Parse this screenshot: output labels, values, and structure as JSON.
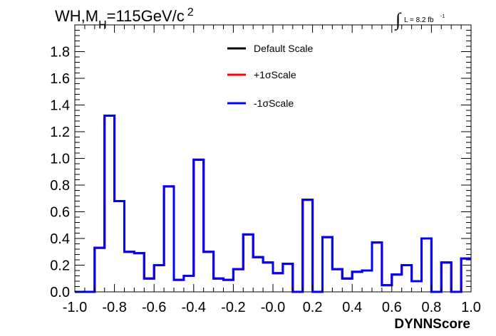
{
  "chart_data": {
    "type": "step",
    "title": "WH,M",
    "title_sub": "H",
    "title_rest": "=115GeV/c",
    "title_sup": "2",
    "lumi_label": "L = 8.2 fb",
    "lumi_sup": "-1",
    "xlabel": "DYNNScore",
    "ylabel": "",
    "xlim": [
      -1.0,
      1.0
    ],
    "ylim": [
      0.0,
      2.0
    ],
    "xticks": [
      "-1.0",
      "-0.8",
      "-0.6",
      "-0.4",
      "-0.2",
      "-0.0",
      "0.2",
      "0.4",
      "0.6",
      "0.8",
      "1.0"
    ],
    "yticks": [
      "0.0",
      "0.2",
      "0.4",
      "0.6",
      "0.8",
      "1.0",
      "1.2",
      "1.4",
      "1.6",
      "1.8"
    ],
    "bin_edges": [
      -1.0,
      -0.9,
      -0.85,
      -0.8,
      -0.75,
      -0.7,
      -0.65,
      -0.6,
      -0.55,
      -0.5,
      -0.45,
      -0.4,
      -0.35,
      -0.3,
      -0.25,
      -0.2,
      -0.15,
      -0.1,
      -0.05,
      0.0,
      0.05,
      0.1,
      0.15,
      0.2,
      0.25,
      0.3,
      0.35,
      0.4,
      0.45,
      0.5,
      0.55,
      0.6,
      0.65,
      0.7,
      0.75,
      0.8,
      0.85,
      0.9,
      0.95,
      1.0
    ],
    "series": [
      {
        "name": "Default Scale",
        "color": "#000000",
        "values": [
          0.0,
          0.33,
          1.32,
          0.68,
          0.3,
          0.29,
          0.1,
          0.2,
          0.79,
          0.09,
          0.12,
          0.99,
          0.3,
          0.1,
          0.09,
          0.17,
          0.43,
          0.26,
          0.22,
          0.14,
          0.21,
          0.0,
          0.69,
          0.0,
          0.41,
          0.17,
          0.1,
          0.15,
          0.16,
          0.37,
          0.05,
          0.13,
          0.2,
          0.08,
          0.4,
          0.0,
          0.22,
          0.0,
          0.25
        ]
      },
      {
        "name": "+1σScale",
        "color": "#ff0000",
        "values": [
          0.0,
          0.33,
          1.32,
          0.68,
          0.3,
          0.29,
          0.1,
          0.2,
          0.79,
          0.09,
          0.12,
          0.99,
          0.3,
          0.1,
          0.09,
          0.17,
          0.43,
          0.26,
          0.22,
          0.14,
          0.21,
          0.0,
          0.69,
          0.0,
          0.41,
          0.17,
          0.1,
          0.15,
          0.16,
          0.37,
          0.05,
          0.13,
          0.2,
          0.08,
          0.4,
          0.0,
          0.22,
          0.0,
          0.25
        ]
      },
      {
        "name": "-1σScale",
        "color": "#0000ff",
        "values": [
          0.0,
          0.33,
          1.32,
          0.68,
          0.3,
          0.29,
          0.1,
          0.2,
          0.79,
          0.09,
          0.12,
          0.99,
          0.3,
          0.1,
          0.09,
          0.17,
          0.43,
          0.26,
          0.22,
          0.14,
          0.21,
          0.0,
          0.69,
          0.0,
          0.41,
          0.17,
          0.1,
          0.15,
          0.16,
          0.37,
          0.05,
          0.13,
          0.2,
          0.08,
          0.4,
          0.0,
          0.22,
          0.0,
          0.25
        ]
      }
    ],
    "legend_placement": "top-center",
    "grid": false
  }
}
